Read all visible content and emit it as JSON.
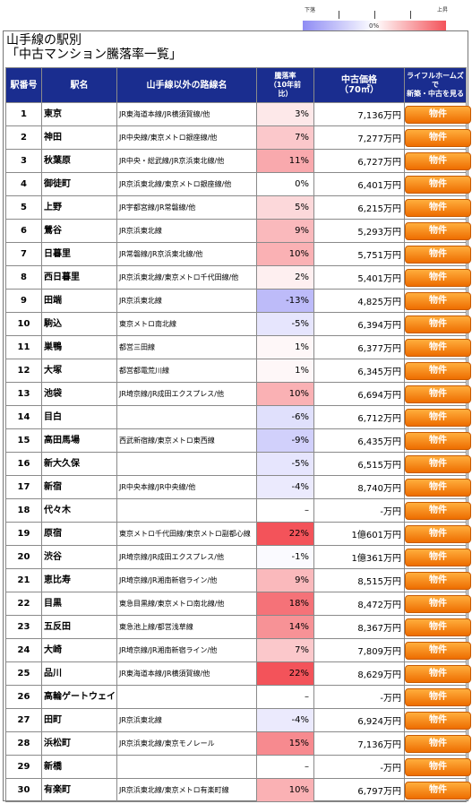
{
  "legend": {
    "low_label": "下落",
    "high_label": "上昇",
    "zero_label": "0%"
  },
  "title": {
    "line1": "山手線の駅別",
    "line2": "「中古マンション騰落率一覧」"
  },
  "colors": {
    "header_bg": "#1a2d8f",
    "button": "#f07a00",
    "negative": "#8f8cf4",
    "positive": "#f3535a"
  },
  "table": {
    "headers": {
      "no": "駅番号",
      "name": "駅名",
      "lines": "山手線以外の路線名",
      "rate_l1": "騰落率",
      "rate_l2": "（10年前",
      "rate_l3": "比）",
      "price_l1": "中古価格",
      "price_l2": "（70㎡）",
      "btn_l1": "ライフルホームズ",
      "btn_l2": "で",
      "btn_l3": "新築・中古を見る"
    },
    "button_label": "物件",
    "rows": [
      {
        "no": "1",
        "name": "東京",
        "lines": "JR東海道本線/JR横須賀線/他",
        "rate": "3%",
        "rate_value": 3,
        "price": "7,136万円"
      },
      {
        "no": "2",
        "name": "神田",
        "lines": "JR中央線/東京メトロ銀座線/他",
        "rate": "7%",
        "rate_value": 7,
        "price": "7,277万円"
      },
      {
        "no": "3",
        "name": "秋葉原",
        "lines": "JR中央・総武線/JR京浜東北線/他",
        "rate": "11%",
        "rate_value": 11,
        "price": "6,727万円"
      },
      {
        "no": "4",
        "name": "御徒町",
        "lines": "JR京浜東北線/東京メトロ銀座線/他",
        "rate": "0%",
        "rate_value": 0,
        "price": "6,401万円"
      },
      {
        "no": "5",
        "name": "上野",
        "lines": "JR宇都宮線/JR常磐線/他",
        "rate": "5%",
        "rate_value": 5,
        "price": "6,215万円"
      },
      {
        "no": "6",
        "name": "鶯谷",
        "lines": "JR京浜東北線",
        "rate": "9%",
        "rate_value": 9,
        "price": "5,293万円"
      },
      {
        "no": "7",
        "name": "日暮里",
        "lines": "JR常磐線/JR京浜東北線/他",
        "rate": "10%",
        "rate_value": 10,
        "price": "5,751万円"
      },
      {
        "no": "8",
        "name": "西日暮里",
        "lines": "JR京浜東北線/東京メトロ千代田線/他",
        "rate": "2%",
        "rate_value": 2,
        "price": "5,401万円"
      },
      {
        "no": "9",
        "name": "田端",
        "lines": "JR京浜東北線",
        "rate": "-13%",
        "rate_value": -13,
        "price": "4,825万円"
      },
      {
        "no": "10",
        "name": "駒込",
        "lines": "東京メトロ南北線",
        "rate": "-5%",
        "rate_value": -5,
        "price": "6,394万円"
      },
      {
        "no": "11",
        "name": "巣鴨",
        "lines": "都営三田線",
        "rate": "1%",
        "rate_value": 1,
        "price": "6,377万円"
      },
      {
        "no": "12",
        "name": "大塚",
        "lines": "都営都電荒川線",
        "rate": "1%",
        "rate_value": 1,
        "price": "6,345万円"
      },
      {
        "no": "13",
        "name": "池袋",
        "lines": "JR埼京線/JR成田エクスプレス/他",
        "rate": "10%",
        "rate_value": 10,
        "price": "6,694万円"
      },
      {
        "no": "14",
        "name": "目白",
        "lines": "",
        "rate": "-6%",
        "rate_value": -6,
        "price": "6,712万円"
      },
      {
        "no": "15",
        "name": "高田馬場",
        "lines": "西武新宿線/東京メトロ東西線",
        "rate": "-9%",
        "rate_value": -9,
        "price": "6,435万円"
      },
      {
        "no": "16",
        "name": "新大久保",
        "lines": "",
        "rate": "-5%",
        "rate_value": -5,
        "price": "6,515万円"
      },
      {
        "no": "17",
        "name": "新宿",
        "lines": "JR中央本線/JR中央線/他",
        "rate": "-4%",
        "rate_value": -4,
        "price": "8,740万円"
      },
      {
        "no": "18",
        "name": "代々木",
        "lines": "",
        "rate": "–",
        "rate_value": null,
        "price": "-万円"
      },
      {
        "no": "19",
        "name": "原宿",
        "lines": "東京メトロ千代田線/東京メトロ副都心線",
        "rate": "22%",
        "rate_value": 22,
        "price": "1億601万円"
      },
      {
        "no": "20",
        "name": "渋谷",
        "lines": "JR埼京線/JR成田エクスプレス/他",
        "rate": "-1%",
        "rate_value": -1,
        "price": "1億361万円"
      },
      {
        "no": "21",
        "name": "恵比寿",
        "lines": "JR埼京線/JR湘南新宿ライン/他",
        "rate": "9%",
        "rate_value": 9,
        "price": "8,515万円"
      },
      {
        "no": "22",
        "name": "目黒",
        "lines": "東急目黒線/東京メトロ南北線/他",
        "rate": "18%",
        "rate_value": 18,
        "price": "8,472万円"
      },
      {
        "no": "23",
        "name": "五反田",
        "lines": "東急池上線/都営浅草線",
        "rate": "14%",
        "rate_value": 14,
        "price": "8,367万円"
      },
      {
        "no": "24",
        "name": "大崎",
        "lines": "JR埼京線/JR湘南新宿ライン/他",
        "rate": "7%",
        "rate_value": 7,
        "price": "7,809万円"
      },
      {
        "no": "25",
        "name": "品川",
        "lines": "JR東海道本線/JR横須賀線/他",
        "rate": "22%",
        "rate_value": 22,
        "price": "8,629万円"
      },
      {
        "no": "26",
        "name": "高輪ゲートウェイ",
        "lines": "",
        "rate": "–",
        "rate_value": null,
        "price": "-万円"
      },
      {
        "no": "27",
        "name": "田町",
        "lines": "JR京浜東北線",
        "rate": "-4%",
        "rate_value": -4,
        "price": "6,924万円"
      },
      {
        "no": "28",
        "name": "浜松町",
        "lines": "JR京浜東北線/東京モノレール",
        "rate": "15%",
        "rate_value": 15,
        "price": "7,136万円"
      },
      {
        "no": "29",
        "name": "新橋",
        "lines": "",
        "rate": "–",
        "rate_value": null,
        "price": "-万円"
      },
      {
        "no": "30",
        "name": "有楽町",
        "lines": "JR京浜東北線/東京メトロ有楽町線",
        "rate": "10%",
        "rate_value": 10,
        "price": "6,797万円"
      }
    ]
  }
}
